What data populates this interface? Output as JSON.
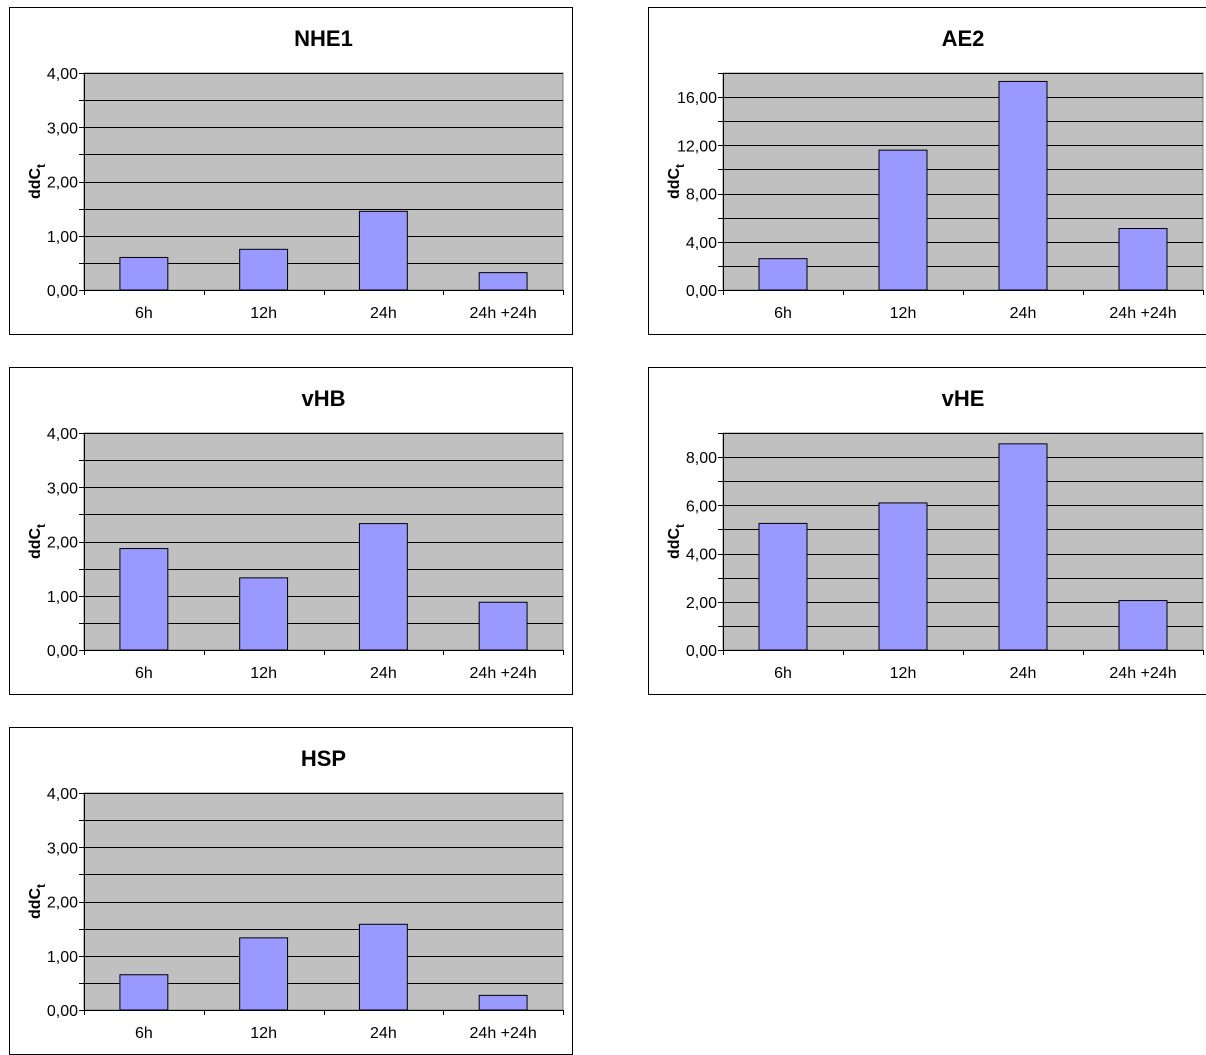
{
  "chart_data": [
    {
      "type": "bar",
      "title": "NHE1",
      "ylabel_main": "ddC",
      "ylabel_sub": "t",
      "categories": [
        "6h",
        "12h",
        "24h",
        "24h +24h"
      ],
      "values": [
        0.6,
        0.75,
        1.45,
        0.32
      ],
      "ylim": [
        0,
        4
      ],
      "yticks": [
        "0,00",
        "1,00",
        "2,00",
        "3,00",
        "4,00"
      ],
      "ytick_values": [
        0,
        1,
        2,
        3,
        4
      ],
      "grid_step": 0.5,
      "grid": true,
      "bar_color": "#9999ff",
      "plot_bg": "#c0c0c0"
    },
    {
      "type": "bar",
      "title": "AE2",
      "ylabel_main": "ddC",
      "ylabel_sub": "t",
      "categories": [
        "6h",
        "12h",
        "24h",
        "24h +24h"
      ],
      "values": [
        2.6,
        11.6,
        17.3,
        5.1
      ],
      "ylim": [
        0,
        18
      ],
      "yticks": [
        "0,00",
        "4,00",
        "8,00",
        "12,00",
        "16,00"
      ],
      "ytick_values": [
        0,
        4,
        8,
        12,
        16
      ],
      "grid_step": 2,
      "grid": true,
      "bar_color": "#9999ff",
      "plot_bg": "#c0c0c0"
    },
    {
      "type": "bar",
      "title": "vHB",
      "ylabel_main": "ddC",
      "ylabel_sub": "t",
      "categories": [
        "6h",
        "12h",
        "24h",
        "24h +24h"
      ],
      "values": [
        1.87,
        1.33,
        2.33,
        0.88
      ],
      "ylim": [
        0,
        4
      ],
      "yticks": [
        "0,00",
        "1,00",
        "2,00",
        "3,00",
        "4,00"
      ],
      "ytick_values": [
        0,
        1,
        2,
        3,
        4
      ],
      "grid_step": 0.5,
      "grid": true,
      "bar_color": "#9999ff",
      "plot_bg": "#c0c0c0"
    },
    {
      "type": "bar",
      "title": "vHE",
      "ylabel_main": "ddC",
      "ylabel_sub": "t",
      "categories": [
        "6h",
        "12h",
        "24h",
        "24h +24h"
      ],
      "values": [
        5.25,
        6.1,
        8.55,
        2.05
      ],
      "ylim": [
        0,
        9
      ],
      "yticks": [
        "0,00",
        "2,00",
        "4,00",
        "6,00",
        "8,00"
      ],
      "ytick_values": [
        0,
        2,
        4,
        6,
        8
      ],
      "grid_step": 1,
      "grid": true,
      "bar_color": "#9999ff",
      "plot_bg": "#c0c0c0"
    },
    {
      "type": "bar",
      "title": "HSP",
      "ylabel_main": "ddC",
      "ylabel_sub": "t",
      "categories": [
        "6h",
        "12h",
        "24h",
        "24h +24h"
      ],
      "values": [
        0.65,
        1.33,
        1.58,
        0.27
      ],
      "ylim": [
        0,
        4
      ],
      "yticks": [
        "0,00",
        "1,00",
        "2,00",
        "3,00",
        "4,00"
      ],
      "ytick_values": [
        0,
        1,
        2,
        3,
        4
      ],
      "grid_step": 0.5,
      "grid": true,
      "bar_color": "#9999ff",
      "plot_bg": "#c0c0c0"
    }
  ]
}
